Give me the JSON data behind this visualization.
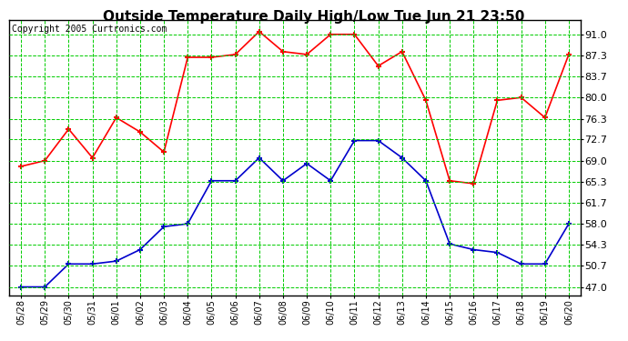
{
  "title": "Outside Temperature Daily High/Low Tue Jun 21 23:50",
  "copyright": "Copyright 2005 Curtronics.com",
  "x_labels": [
    "05/28",
    "05/29",
    "05/30",
    "05/31",
    "06/01",
    "06/02",
    "06/03",
    "06/04",
    "06/05",
    "06/06",
    "06/07",
    "06/08",
    "06/09",
    "06/10",
    "06/11",
    "06/12",
    "06/13",
    "06/14",
    "06/15",
    "06/16",
    "06/17",
    "06/18",
    "06/19",
    "06/20"
  ],
  "high_temps": [
    68.0,
    69.0,
    74.5,
    69.5,
    76.5,
    74.0,
    70.5,
    87.0,
    87.0,
    87.5,
    91.5,
    88.0,
    87.5,
    91.0,
    91.0,
    85.5,
    88.0,
    79.5,
    65.5,
    65.0,
    79.5,
    80.0,
    76.5,
    87.5
  ],
  "low_temps": [
    47.0,
    47.0,
    51.0,
    51.0,
    51.5,
    53.5,
    57.5,
    58.0,
    65.5,
    65.5,
    69.5,
    65.5,
    68.5,
    65.5,
    72.5,
    72.5,
    69.5,
    65.5,
    54.5,
    53.5,
    53.0,
    51.0,
    51.0,
    58.0
  ],
  "high_color": "#ff0000",
  "low_color": "#0000cc",
  "bg_color": "#ffffff",
  "grid_color": "#00cc00",
  "title_fontsize": 11,
  "copyright_fontsize": 7,
  "ytick_fontsize": 8,
  "xtick_fontsize": 7,
  "yticks": [
    47.0,
    50.7,
    54.3,
    58.0,
    61.7,
    65.3,
    69.0,
    72.7,
    76.3,
    80.0,
    83.7,
    87.3,
    91.0
  ],
  "ylim": [
    45.5,
    93.5
  ],
  "xlim": [
    -0.5,
    23.5
  ]
}
